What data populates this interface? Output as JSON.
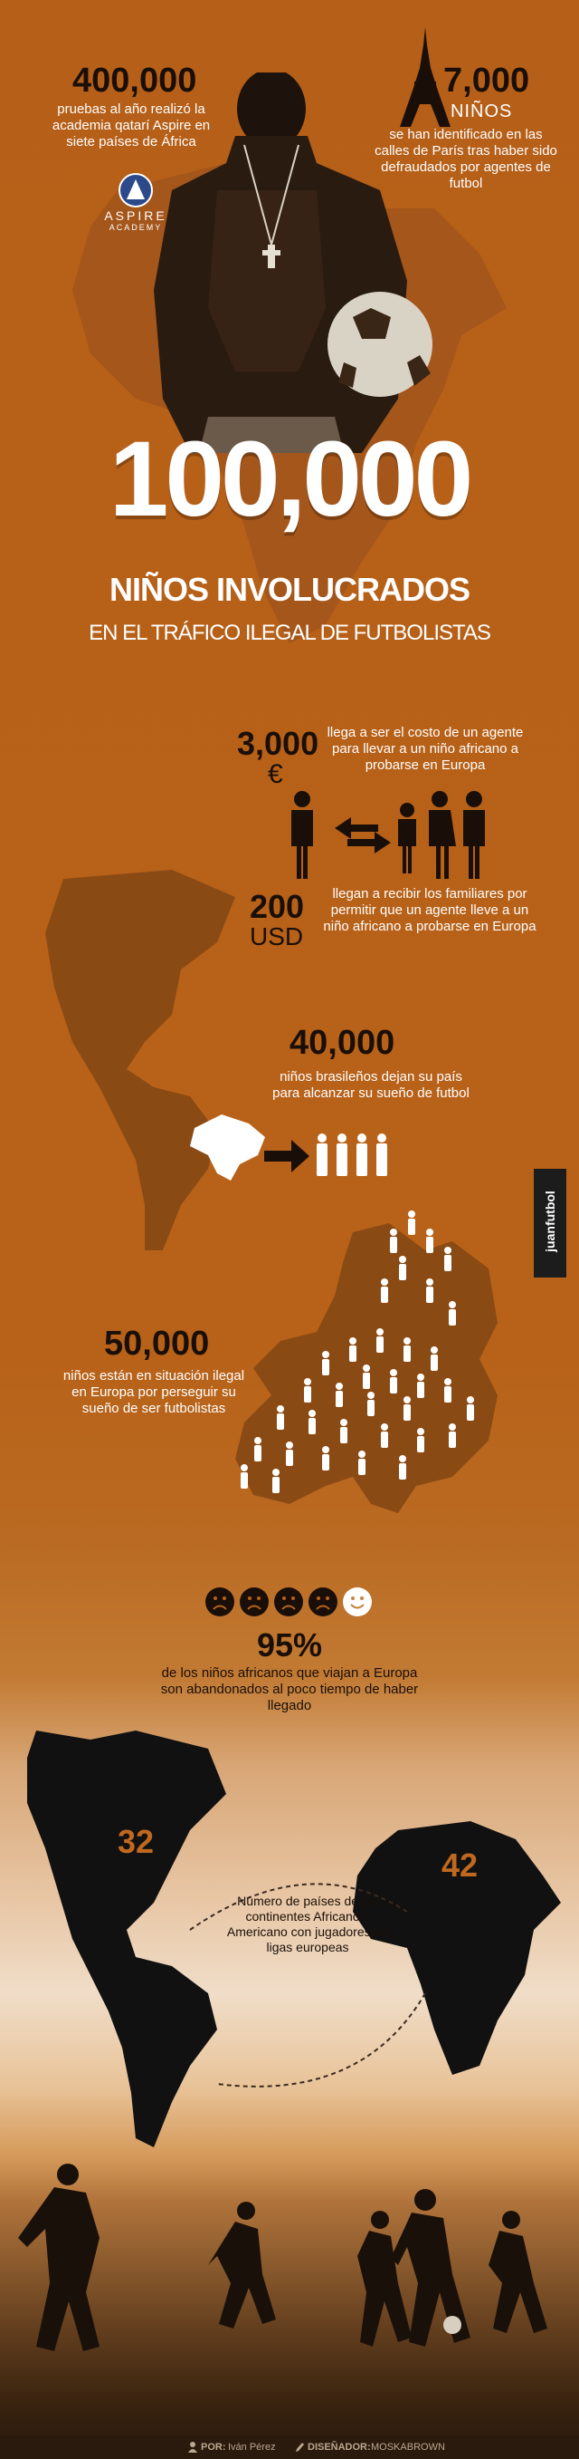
{
  "top_left": {
    "number": "400,000",
    "text": "pruebas al año realizó la academia qatarí Aspire en siete países de África",
    "logo_name": "ASPIRE",
    "logo_sub": "ACADEMY"
  },
  "top_right": {
    "number": "7,000",
    "unit": "NIÑOS",
    "text": "se han identificado en las calles de París tras haber sido defraudados por agentes de futbol"
  },
  "headline": {
    "number": "100,000",
    "line1": "NIÑOS INVOLUCRADOS",
    "line2": "EN EL TRÁFICO ILEGAL DE FUTBOLISTAS"
  },
  "agent_cost": {
    "amount": "3,000",
    "currency": "€",
    "text": "llega a ser el costo de un agente para llevar a un niño africano a probarse en Europa"
  },
  "family_pay": {
    "amount": "200",
    "currency": "USD",
    "text": "llegan a recibir los familiares por permitir que un agente lleve a un niño africano a probarse en Europa"
  },
  "brazil": {
    "number": "40,000",
    "text": "niños brasileños dejan su país para alcanzar su sueño de futbol"
  },
  "europe": {
    "number": "50,000",
    "text": "niños están en situación ilegal en Europa por perseguir su sueño de ser futbolistas"
  },
  "abandoned": {
    "number": "95%",
    "text": "de los niños africanos que viajan a Europa son abandonados al poco tiempo de haber llegado"
  },
  "countries": {
    "americas": "32",
    "africa": "42",
    "text": "Número de países de los continentes Africano y Americano con jugadores en ligas europeas"
  },
  "side_brand": "juanfutbol",
  "footer": {
    "by_label": "POR:",
    "by_name": "Iván Pérez",
    "design_label": "DISEÑADOR:",
    "design_name": "MOSKABROWN"
  },
  "colors": {
    "background": "#b7601a",
    "dark": "#1a0f08",
    "shape": "#8a4a14"
  }
}
